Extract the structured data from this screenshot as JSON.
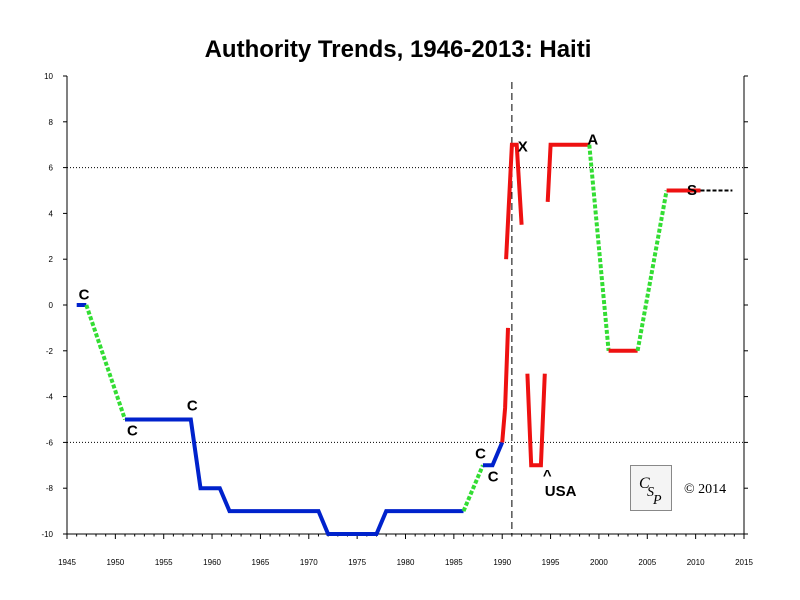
{
  "chart_data": {
    "type": "line",
    "title": "Authority Trends, 1946-2013: Haiti",
    "xlabel": "",
    "ylabel": "",
    "xlim": [
      1945,
      2015
    ],
    "ylim": [
      -10,
      10
    ],
    "x_ticks": [
      1945,
      1950,
      1955,
      1960,
      1965,
      1970,
      1975,
      1980,
      1985,
      1990,
      1995,
      2000,
      2005,
      2010,
      2015
    ],
    "y_ticks": [
      -10,
      -8,
      -6,
      -4,
      -2,
      0,
      2,
      4,
      6,
      8,
      10
    ],
    "reference_lines_y": [
      6,
      -6
    ],
    "reference_line_x": 1991,
    "grid": false,
    "segments": [
      {
        "style": "normal",
        "color": "#0022cc",
        "points": [
          [
            1946,
            0
          ],
          [
            1947,
            0
          ]
        ]
      },
      {
        "style": "transition",
        "color": "#33dd33",
        "points": [
          [
            1947,
            0
          ],
          [
            1951,
            -5
          ]
        ]
      },
      {
        "style": "normal",
        "color": "#0022cc",
        "points": [
          [
            1951,
            -5
          ],
          [
            1957.8,
            -5
          ],
          [
            1958.8,
            -8
          ],
          [
            1960.8,
            -8
          ],
          [
            1961.8,
            -9
          ],
          [
            1971,
            -9
          ],
          [
            1972,
            -10
          ],
          [
            1977,
            -10
          ],
          [
            1978,
            -9
          ],
          [
            1986,
            -9
          ]
        ]
      },
      {
        "style": "transition",
        "color": "#33dd33",
        "points": [
          [
            1986,
            -9
          ],
          [
            1988,
            -7
          ]
        ]
      },
      {
        "style": "normal",
        "color": "#0022cc",
        "points": [
          [
            1988,
            -7
          ],
          [
            1989,
            -7
          ],
          [
            1990,
            -6
          ]
        ]
      },
      {
        "style": "interruption",
        "color": "#ee1111",
        "points": [
          [
            1990,
            -6
          ],
          [
            1990.3,
            -4.5
          ],
          [
            1990.6,
            -1
          ]
        ]
      },
      {
        "style": "interruption",
        "color": "#ee1111",
        "points": [
          [
            1990.4,
            2
          ],
          [
            1991,
            7
          ],
          [
            1991.5,
            7
          ],
          [
            1992,
            3.5
          ]
        ]
      },
      {
        "style": "interruption",
        "color": "#ee1111",
        "points": [
          [
            1992.6,
            -3
          ],
          [
            1993,
            -7
          ],
          [
            1994,
            -7
          ],
          [
            1994.4,
            -3
          ]
        ]
      },
      {
        "style": "interruption",
        "color": "#ee1111",
        "points": [
          [
            1994.7,
            4.5
          ],
          [
            1995,
            7
          ],
          [
            1999,
            7
          ]
        ]
      },
      {
        "style": "transition",
        "color": "#33dd33",
        "points": [
          [
            1999,
            7
          ],
          [
            2001,
            -2
          ]
        ]
      },
      {
        "style": "interruption",
        "color": "#ee1111",
        "points": [
          [
            2001,
            -2
          ],
          [
            2004,
            -2
          ]
        ]
      },
      {
        "style": "transition",
        "color": "#33dd33",
        "points": [
          [
            2004,
            -2
          ],
          [
            2007,
            5
          ]
        ]
      },
      {
        "style": "interruption",
        "color": "#ee1111",
        "points": [
          [
            2007,
            5
          ],
          [
            2010.5,
            5
          ]
        ]
      },
      {
        "style": "projection",
        "color": "#000000",
        "points": [
          [
            2010.5,
            5
          ],
          [
            2013.8,
            5
          ]
        ]
      }
    ],
    "annotations": [
      {
        "text": "C",
        "x": 1946.2,
        "y": 0.25,
        "color": "#000000"
      },
      {
        "text": "C",
        "x": 1951.2,
        "y": -5.7,
        "color": "#000000"
      },
      {
        "text": "C",
        "x": 1957.4,
        "y": -4.6,
        "color": "#000000"
      },
      {
        "text": "C",
        "x": 1987.2,
        "y": -6.7,
        "color": "#000000"
      },
      {
        "text": "C",
        "x": 1988.5,
        "y": -7.7,
        "color": "#000000"
      },
      {
        "text": "X",
        "x": 1991.6,
        "y": 6.7,
        "color": "#000000"
      },
      {
        "text": "A",
        "x": 1998.8,
        "y": 7.0,
        "color": "#000000"
      },
      {
        "text": "S",
        "x": 2009.1,
        "y": 4.8,
        "color": "#000000"
      },
      {
        "text": "^",
        "x": 1994.2,
        "y": -7.65,
        "color": "#ee8800"
      },
      {
        "text": "USA",
        "x": 1994.4,
        "y": -8.35,
        "color": "#ee8800"
      }
    ]
  },
  "copyright": "© 2014",
  "logo": "CSP"
}
